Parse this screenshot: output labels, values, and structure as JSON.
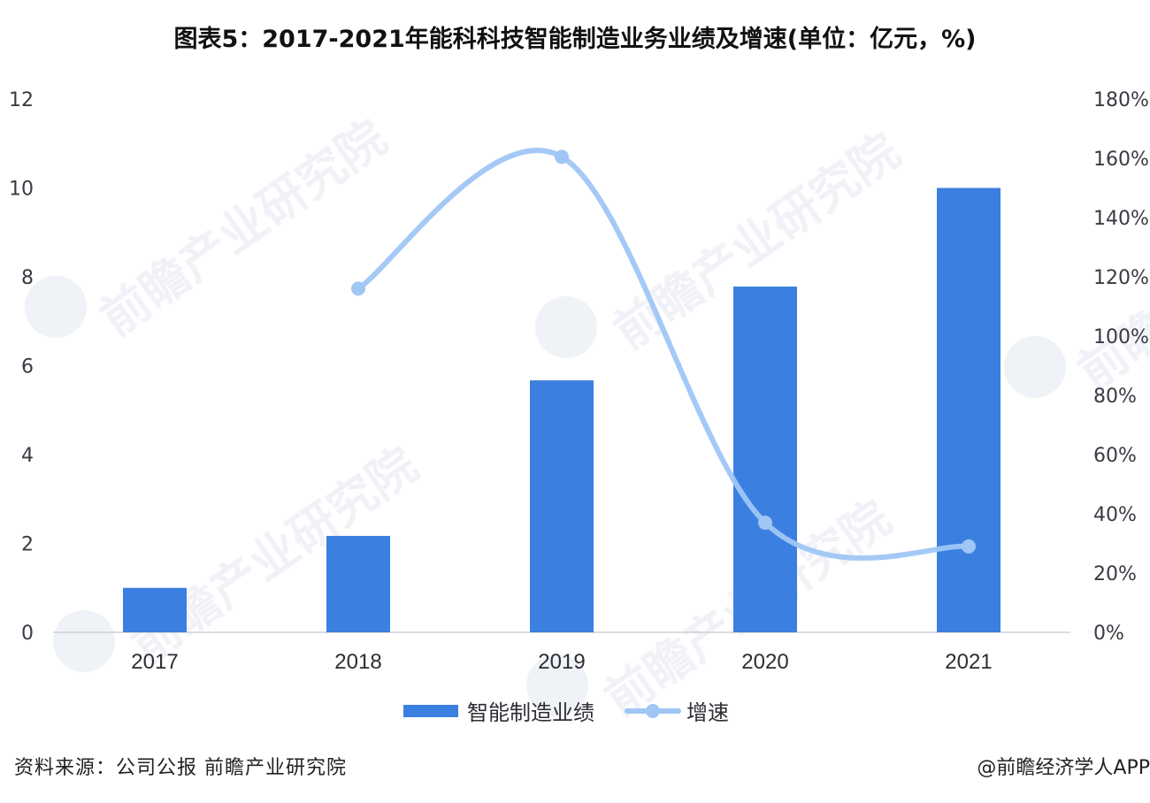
{
  "title": "图表5：2017-2021年能科科技智能制造业务业绩及增速(单位：亿元，%)",
  "chart_data": {
    "type": "bar+line",
    "title": "图表5：2017-2021年能科科技智能制造业务业绩及增速(单位：亿元，%)",
    "categories": [
      "2017",
      "2018",
      "2019",
      "2020",
      "2021"
    ],
    "series": [
      {
        "name": "智能制造业绩",
        "type": "bar",
        "axis": "left",
        "unit": "亿元",
        "values": [
          1.0,
          2.17,
          5.67,
          7.78,
          10.0
        ]
      },
      {
        "name": "增速",
        "type": "line",
        "axis": "right",
        "unit": "%",
        "values": [
          null,
          116,
          160.5,
          37,
          29
        ]
      }
    ],
    "y_left": {
      "label": "",
      "range": [
        0,
        12
      ],
      "ticks": [
        "0",
        "2",
        "4",
        "6",
        "8",
        "10",
        "12"
      ]
    },
    "y_right": {
      "label": "",
      "range": [
        0,
        180
      ],
      "ticks": [
        "0%",
        "20%",
        "40%",
        "60%",
        "80%",
        "100%",
        "120%",
        "140%",
        "160%",
        "180%"
      ]
    },
    "xlabel": "",
    "grid": false,
    "legend_position": "bottom",
    "colors": {
      "bar": "#3b80e0",
      "line": "#9fc6f5"
    }
  },
  "legend": {
    "bar_label": "智能制造业绩",
    "line_label": "增速"
  },
  "footer": {
    "source": "资料来源：公司公报 前瞻产业研究院",
    "credit": "@前瞻经济学人APP"
  },
  "watermark": {
    "text": "前瞻产业研究院"
  }
}
